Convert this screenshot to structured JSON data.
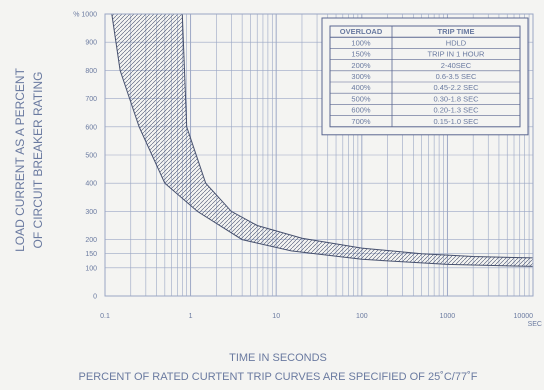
{
  "chart_data": {
    "type": "area",
    "title": "",
    "xlabel": "TIME IN SECONDS",
    "ylabel_lines": [
      "LOAD CURRENT AS A PERCENT",
      "OF CIRCUIT BREAKER RATING"
    ],
    "note": "PERCENT OF RATED CURTENT TRIP CURVES ARE SPECIFIED OF 25˚C/77˚F",
    "x_scale": "log",
    "xlim": [
      0.1,
      10000
    ],
    "ylim": [
      0,
      1000
    ],
    "x_ticks": [
      {
        "value": 0.1,
        "label": "0.1"
      },
      {
        "value": 1,
        "label": "1"
      },
      {
        "value": 10,
        "label": "10"
      },
      {
        "value": 100,
        "label": "100"
      },
      {
        "value": 1000,
        "label": "1000"
      },
      {
        "value": 10000,
        "label": "10000"
      }
    ],
    "x_unit_label": "SEC",
    "y_ticks": [
      {
        "value": 0,
        "label": "0"
      },
      {
        "value": 100,
        "label": "100"
      },
      {
        "value": 150,
        "label": "150"
      },
      {
        "value": 200,
        "label": "200"
      },
      {
        "value": 300,
        "label": "300"
      },
      {
        "value": 400,
        "label": "400"
      },
      {
        "value": 500,
        "label": "500"
      },
      {
        "value": 600,
        "label": "600"
      },
      {
        "value": 700,
        "label": "700"
      },
      {
        "value": 800,
        "label": "800"
      },
      {
        "value": 900,
        "label": "900"
      },
      {
        "value": 1000,
        "label": "% 1000"
      }
    ],
    "y_gridlines": [
      0,
      100,
      150,
      200,
      300,
      400,
      500,
      600,
      700,
      800,
      900,
      1000
    ],
    "grid": true,
    "band": {
      "name": "",
      "upper": [
        {
          "x": 0.8,
          "y": 1000
        },
        {
          "x": 0.9,
          "y": 600
        },
        {
          "x": 1.5,
          "y": 400
        },
        {
          "x": 3,
          "y": 300
        },
        {
          "x": 6,
          "y": 250
        },
        {
          "x": 20,
          "y": 205
        },
        {
          "x": 100,
          "y": 170
        },
        {
          "x": 500,
          "y": 150
        },
        {
          "x": 2000,
          "y": 140
        },
        {
          "x": 10000,
          "y": 135
        }
      ],
      "lower": [
        {
          "x": 0.12,
          "y": 1000
        },
        {
          "x": 0.15,
          "y": 800
        },
        {
          "x": 0.25,
          "y": 600
        },
        {
          "x": 0.5,
          "y": 400
        },
        {
          "x": 1.2,
          "y": 300
        },
        {
          "x": 4,
          "y": 200
        },
        {
          "x": 15,
          "y": 160
        },
        {
          "x": 100,
          "y": 130
        },
        {
          "x": 1000,
          "y": 112
        },
        {
          "x": 10000,
          "y": 105
        }
      ]
    },
    "legend_placement": "top-right",
    "table": {
      "headers": [
        "OVERLOAD",
        "TRIP TIME"
      ],
      "rows": [
        [
          "100%",
          "HDLD"
        ],
        [
          "150%",
          "TRIP IN 1 HOUR"
        ],
        [
          "200%",
          "2-40SEC"
        ],
        [
          "300%",
          "0.6-3.5 SEC"
        ],
        [
          "400%",
          "0.45-2.2 SEC"
        ],
        [
          "500%",
          "0.30-1.8 SEC"
        ],
        [
          "600%",
          "0.20-1.3 SEC"
        ],
        [
          "700%",
          "0.15-1.0 SEC"
        ]
      ]
    },
    "colors": {
      "grid": "#9aa6c4",
      "text": "#6a7aa0",
      "curve": "#46506e",
      "table_line": "#5a6690"
    }
  }
}
